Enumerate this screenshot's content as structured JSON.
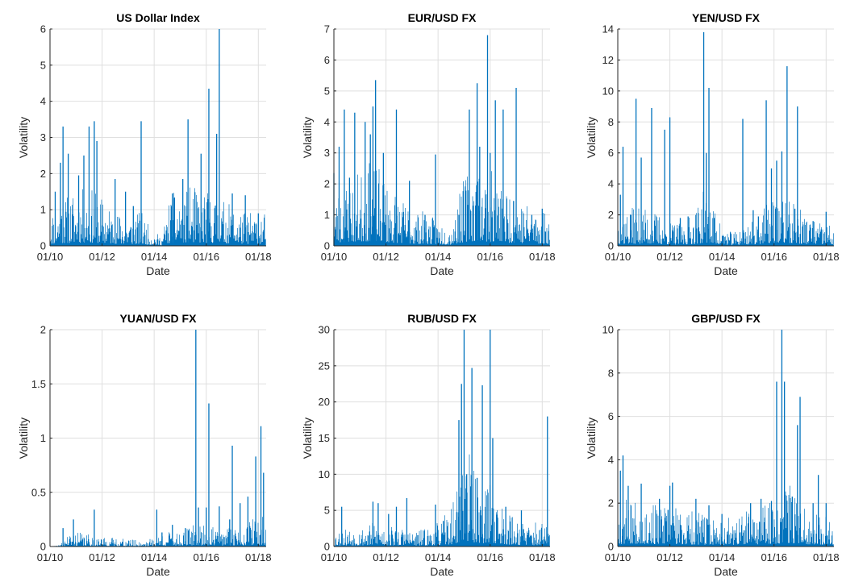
{
  "figure": {
    "background": "#ffffff",
    "line_color": "#0072BD",
    "grid_color": "#dfdfdf",
    "axis_color": "#262626"
  },
  "chart_data": [
    {
      "type": "bar",
      "title": "US Dollar Index",
      "xlabel": "Date",
      "ylabel": "Volatility",
      "ylim": [
        0,
        6
      ],
      "yticks": [
        0,
        1,
        2,
        3,
        4,
        5,
        6
      ],
      "xlim": [
        2010.0,
        2018.3
      ],
      "xticks": [
        2010,
        2012,
        2014,
        2016,
        2018
      ],
      "xtick_labels": [
        "01/10",
        "01/12",
        "01/14",
        "01/16",
        "01/18"
      ],
      "grid": true,
      "profile": [
        [
          2010.0,
          0.35
        ],
        [
          2010.5,
          0.5
        ],
        [
          2011.0,
          0.55
        ],
        [
          2011.5,
          0.6
        ],
        [
          2012.0,
          0.5
        ],
        [
          2012.5,
          0.35
        ],
        [
          2013.0,
          0.3
        ],
        [
          2013.5,
          0.35
        ],
        [
          2013.9,
          0.15
        ],
        [
          2014.3,
          0.1
        ],
        [
          2014.6,
          0.5
        ],
        [
          2015.0,
          0.6
        ],
        [
          2015.5,
          0.6
        ],
        [
          2016.0,
          0.55
        ],
        [
          2016.5,
          0.5
        ],
        [
          2017.0,
          0.4
        ],
        [
          2017.5,
          0.35
        ],
        [
          2018.0,
          0.35
        ],
        [
          2018.3,
          0.35
        ]
      ],
      "spikes": [
        [
          2010.2,
          1.5
        ],
        [
          2010.4,
          2.3
        ],
        [
          2010.5,
          3.3
        ],
        [
          2010.7,
          2.55
        ],
        [
          2011.1,
          1.95
        ],
        [
          2011.3,
          2.5
        ],
        [
          2011.5,
          3.3
        ],
        [
          2011.7,
          3.45
        ],
        [
          2011.8,
          2.9
        ],
        [
          2012.5,
          1.85
        ],
        [
          2012.9,
          1.5
        ],
        [
          2013.2,
          1.1
        ],
        [
          2013.5,
          3.45
        ],
        [
          2014.7,
          1.45
        ],
        [
          2015.1,
          1.85
        ],
        [
          2015.3,
          3.5
        ],
        [
          2015.8,
          2.55
        ],
        [
          2016.1,
          4.35
        ],
        [
          2016.4,
          3.1
        ],
        [
          2016.5,
          6.0
        ],
        [
          2017.0,
          1.45
        ],
        [
          2017.5,
          1.4
        ],
        [
          2018.0,
          0.9
        ]
      ],
      "seed": 11
    },
    {
      "type": "bar",
      "title": "EUR/USD FX",
      "xlabel": "Date",
      "ylabel": "Volatility",
      "ylim": [
        0,
        7
      ],
      "yticks": [
        0,
        1,
        2,
        3,
        4,
        5,
        6,
        7
      ],
      "xlim": [
        2010.0,
        2018.3
      ],
      "xticks": [
        2010,
        2012,
        2014,
        2016,
        2018
      ],
      "xtick_labels": [
        "01/10",
        "01/12",
        "01/14",
        "01/16",
        "01/18"
      ],
      "grid": true,
      "profile": [
        [
          2010.0,
          0.6
        ],
        [
          2010.5,
          0.8
        ],
        [
          2011.0,
          0.9
        ],
        [
          2011.5,
          1.0
        ],
        [
          2012.0,
          0.8
        ],
        [
          2012.5,
          0.6
        ],
        [
          2013.0,
          0.45
        ],
        [
          2013.5,
          0.4
        ],
        [
          2014.0,
          0.3
        ],
        [
          2014.5,
          0.25
        ],
        [
          2014.8,
          0.6
        ],
        [
          2015.2,
          1.0
        ],
        [
          2015.6,
          1.0
        ],
        [
          2016.0,
          0.9
        ],
        [
          2016.5,
          0.7
        ],
        [
          2017.0,
          0.6
        ],
        [
          2017.5,
          0.5
        ],
        [
          2018.0,
          0.45
        ],
        [
          2018.3,
          0.45
        ]
      ],
      "spikes": [
        [
          2010.0,
          2.35
        ],
        [
          2010.2,
          3.2
        ],
        [
          2010.4,
          4.4
        ],
        [
          2010.6,
          2.2
        ],
        [
          2010.8,
          4.3
        ],
        [
          2011.2,
          4.0
        ],
        [
          2011.4,
          3.6
        ],
        [
          2011.5,
          4.5
        ],
        [
          2011.6,
          5.35
        ],
        [
          2011.9,
          3.0
        ],
        [
          2012.4,
          4.4
        ],
        [
          2012.9,
          2.1
        ],
        [
          2013.5,
          1.0
        ],
        [
          2013.9,
          2.95
        ],
        [
          2014.8,
          1.0
        ],
        [
          2015.2,
          4.4
        ],
        [
          2015.5,
          5.25
        ],
        [
          2015.6,
          3.2
        ],
        [
          2015.9,
          6.8
        ],
        [
          2016.0,
          3.0
        ],
        [
          2016.2,
          4.7
        ],
        [
          2016.5,
          4.4
        ],
        [
          2016.9,
          1.45
        ],
        [
          2017.0,
          5.1
        ],
        [
          2017.6,
          1.0
        ],
        [
          2018.0,
          1.2
        ]
      ],
      "seed": 23
    },
    {
      "type": "bar",
      "title": "YEN/USD FX",
      "xlabel": "Date",
      "ylabel": "Volatility",
      "ylim": [
        0,
        14
      ],
      "yticks": [
        0,
        2,
        4,
        6,
        8,
        10,
        12,
        14
      ],
      "xlim": [
        2010.0,
        2018.3
      ],
      "xticks": [
        2010,
        2012,
        2014,
        2016,
        2018
      ],
      "xtick_labels": [
        "01/10",
        "01/12",
        "01/14",
        "01/16",
        "01/18"
      ],
      "grid": true,
      "profile": [
        [
          2010.0,
          0.8
        ],
        [
          2010.5,
          0.9
        ],
        [
          2011.0,
          0.9
        ],
        [
          2011.5,
          0.8
        ],
        [
          2012.0,
          0.6
        ],
        [
          2012.5,
          0.5
        ],
        [
          2013.0,
          0.9
        ],
        [
          2013.3,
          1.3
        ],
        [
          2013.6,
          1.0
        ],
        [
          2014.0,
          0.5
        ],
        [
          2014.4,
          0.3
        ],
        [
          2014.8,
          0.5
        ],
        [
          2015.2,
          0.6
        ],
        [
          2015.6,
          0.9
        ],
        [
          2016.0,
          1.2
        ],
        [
          2016.5,
          1.1
        ],
        [
          2017.0,
          0.9
        ],
        [
          2017.5,
          0.6
        ],
        [
          2018.0,
          0.5
        ],
        [
          2018.3,
          0.5
        ]
      ],
      "spikes": [
        [
          2010.1,
          3.3
        ],
        [
          2010.2,
          6.4
        ],
        [
          2010.5,
          2.0
        ],
        [
          2010.7,
          9.5
        ],
        [
          2010.9,
          5.7
        ],
        [
          2011.3,
          8.9
        ],
        [
          2011.8,
          7.5
        ],
        [
          2012.0,
          8.3
        ],
        [
          2012.4,
          1.8
        ],
        [
          2012.7,
          1.9
        ],
        [
          2013.0,
          2.0
        ],
        [
          2013.3,
          13.8
        ],
        [
          2013.4,
          6.0
        ],
        [
          2013.5,
          10.2
        ],
        [
          2013.7,
          1.8
        ],
        [
          2014.8,
          8.2
        ],
        [
          2015.2,
          2.3
        ],
        [
          2015.4,
          1.9
        ],
        [
          2015.7,
          9.4
        ],
        [
          2015.9,
          5.0
        ],
        [
          2016.1,
          5.5
        ],
        [
          2016.3,
          6.1
        ],
        [
          2016.5,
          11.6
        ],
        [
          2016.8,
          2.4
        ],
        [
          2016.9,
          9.0
        ],
        [
          2017.5,
          1.6
        ],
        [
          2018.0,
          2.2
        ]
      ],
      "seed": 37
    },
    {
      "type": "bar",
      "title": "YUAN/USD FX",
      "xlabel": "Date",
      "ylabel": "Volatility",
      "ylim": [
        0,
        2
      ],
      "yticks": [
        0,
        0.5,
        1,
        1.5,
        2
      ],
      "xlim": [
        2010.0,
        2018.3
      ],
      "xticks": [
        2010,
        2012,
        2014,
        2016,
        2018
      ],
      "xtick_labels": [
        "01/10",
        "01/12",
        "01/14",
        "01/16",
        "01/18"
      ],
      "grid": true,
      "profile": [
        [
          2010.0,
          0.0
        ],
        [
          2010.4,
          0.005
        ],
        [
          2010.6,
          0.04
        ],
        [
          2011.0,
          0.05
        ],
        [
          2011.5,
          0.04
        ],
        [
          2012.0,
          0.03
        ],
        [
          2012.5,
          0.03
        ],
        [
          2013.0,
          0.025
        ],
        [
          2013.5,
          0.02
        ],
        [
          2014.0,
          0.03
        ],
        [
          2014.3,
          0.05
        ],
        [
          2014.8,
          0.05
        ],
        [
          2015.3,
          0.06
        ],
        [
          2015.6,
          0.08
        ],
        [
          2016.0,
          0.07
        ],
        [
          2016.5,
          0.06
        ],
        [
          2017.0,
          0.07
        ],
        [
          2017.5,
          0.08
        ],
        [
          2018.0,
          0.1
        ],
        [
          2018.3,
          0.1
        ]
      ],
      "spikes": [
        [
          2010.5,
          0.17
        ],
        [
          2010.9,
          0.25
        ],
        [
          2011.7,
          0.34
        ],
        [
          2014.1,
          0.34
        ],
        [
          2014.3,
          0.13
        ],
        [
          2014.7,
          0.2
        ],
        [
          2015.2,
          0.17
        ],
        [
          2015.6,
          2.0
        ],
        [
          2015.7,
          0.36
        ],
        [
          2016.0,
          0.36
        ],
        [
          2016.1,
          1.32
        ],
        [
          2016.5,
          0.37
        ],
        [
          2016.9,
          0.25
        ],
        [
          2017.0,
          0.93
        ],
        [
          2017.3,
          0.4
        ],
        [
          2017.6,
          0.46
        ],
        [
          2017.9,
          0.83
        ],
        [
          2018.1,
          1.11
        ],
        [
          2018.2,
          0.68
        ]
      ],
      "seed": 41
    },
    {
      "type": "bar",
      "title": "RUB/USD FX",
      "xlabel": "Date",
      "ylabel": "Volatility",
      "ylim": [
        0,
        30
      ],
      "yticks": [
        0,
        5,
        10,
        15,
        20,
        25,
        30
      ],
      "xlim": [
        2010.0,
        2018.3
      ],
      "xticks": [
        2010,
        2012,
        2014,
        2016,
        2018
      ],
      "xtick_labels": [
        "01/10",
        "01/12",
        "01/14",
        "01/16",
        "01/18"
      ],
      "grid": true,
      "profile": [
        [
          2010.0,
          0.8
        ],
        [
          2010.5,
          1.0
        ],
        [
          2011.0,
          1.0
        ],
        [
          2011.5,
          1.2
        ],
        [
          2012.0,
          1.1
        ],
        [
          2012.5,
          1.0
        ],
        [
          2013.0,
          0.8
        ],
        [
          2013.5,
          0.9
        ],
        [
          2014.0,
          1.2
        ],
        [
          2014.5,
          2.0
        ],
        [
          2014.9,
          4.0
        ],
        [
          2015.0,
          6.0
        ],
        [
          2015.3,
          4.0
        ],
        [
          2015.7,
          3.0
        ],
        [
          2016.0,
          3.5
        ],
        [
          2016.5,
          2.0
        ],
        [
          2017.0,
          1.5
        ],
        [
          2017.5,
          1.2
        ],
        [
          2018.0,
          1.2
        ],
        [
          2018.3,
          1.2
        ]
      ],
      "spikes": [
        [
          2010.3,
          5.5
        ],
        [
          2011.5,
          6.2
        ],
        [
          2011.7,
          6.0
        ],
        [
          2012.1,
          4.5
        ],
        [
          2012.4,
          5.5
        ],
        [
          2012.8,
          6.7
        ],
        [
          2013.9,
          5.8
        ],
        [
          2014.8,
          17.5
        ],
        [
          2014.9,
          22.5
        ],
        [
          2015.0,
          30.0
        ],
        [
          2015.1,
          10.0
        ],
        [
          2015.3,
          24.7
        ],
        [
          2015.5,
          9.5
        ],
        [
          2015.7,
          22.3
        ],
        [
          2016.0,
          30.0
        ],
        [
          2016.1,
          15.0
        ],
        [
          2016.6,
          5.5
        ],
        [
          2017.2,
          5.0
        ],
        [
          2018.2,
          18.0
        ]
      ],
      "seed": 53
    },
    {
      "type": "bar",
      "title": "GBP/USD FX",
      "xlabel": "Date",
      "ylabel": "Volatility",
      "ylim": [
        0,
        10
      ],
      "yticks": [
        0,
        2,
        4,
        6,
        8,
        10
      ],
      "xlim": [
        2010.0,
        2018.3
      ],
      "xticks": [
        2010,
        2012,
        2014,
        2016,
        2018
      ],
      "xtick_labels": [
        "01/10",
        "01/12",
        "01/14",
        "01/16",
        "01/18"
      ],
      "grid": true,
      "profile": [
        [
          2010.0,
          0.7
        ],
        [
          2010.5,
          0.9
        ],
        [
          2011.0,
          0.8
        ],
        [
          2011.5,
          0.7
        ],
        [
          2012.0,
          0.7
        ],
        [
          2012.5,
          0.6
        ],
        [
          2013.0,
          0.6
        ],
        [
          2013.5,
          0.5
        ],
        [
          2014.0,
          0.5
        ],
        [
          2014.5,
          0.5
        ],
        [
          2015.0,
          0.6
        ],
        [
          2015.5,
          0.7
        ],
        [
          2016.0,
          0.8
        ],
        [
          2016.5,
          1.1
        ],
        [
          2017.0,
          0.8
        ],
        [
          2017.5,
          0.6
        ],
        [
          2018.0,
          0.6
        ],
        [
          2018.3,
          0.6
        ]
      ],
      "spikes": [
        [
          2010.1,
          3.5
        ],
        [
          2010.2,
          4.2
        ],
        [
          2010.4,
          2.8
        ],
        [
          2010.9,
          2.9
        ],
        [
          2011.6,
          2.2
        ],
        [
          2012.0,
          2.8
        ],
        [
          2012.1,
          2.95
        ],
        [
          2013.0,
          2.2
        ],
        [
          2013.5,
          1.9
        ],
        [
          2014.0,
          1.5
        ],
        [
          2015.1,
          2.0
        ],
        [
          2015.5,
          2.2
        ],
        [
          2015.9,
          2.1
        ],
        [
          2016.1,
          7.6
        ],
        [
          2016.3,
          10.0
        ],
        [
          2016.4,
          7.6
        ],
        [
          2016.7,
          2.3
        ],
        [
          2016.9,
          5.6
        ],
        [
          2017.0,
          6.9
        ],
        [
          2017.5,
          2.0
        ],
        [
          2017.7,
          3.3
        ],
        [
          2018.0,
          2.0
        ]
      ],
      "seed": 67
    }
  ]
}
